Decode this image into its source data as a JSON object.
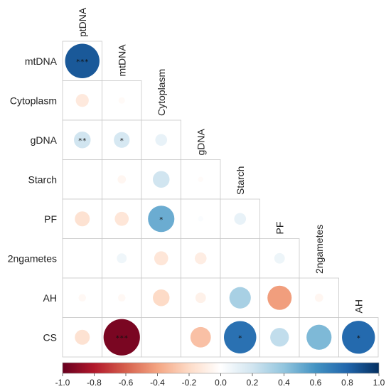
{
  "chart_data": {
    "type": "heatmap",
    "style": "lower-triangle correlogram, circle size and colour proportional to correlation",
    "top_labels": [
      "ptDNA",
      "mtDNA",
      "Cytoplasm",
      "gDNA",
      "Starch",
      "PF",
      "2ngametes",
      "AH"
    ],
    "row_labels": [
      "mtDNA",
      "Cytoplasm",
      "gDNA",
      "Starch",
      "PF",
      "2ngametes",
      "AH",
      "CS"
    ],
    "cells": [
      {
        "row": "mtDNA",
        "col": "ptDNA",
        "r": 0.85,
        "sig": "***"
      },
      {
        "row": "Cytoplasm",
        "col": "ptDNA",
        "r": -0.12,
        "sig": ""
      },
      {
        "row": "Cytoplasm",
        "col": "mtDNA",
        "r": -0.03,
        "sig": ""
      },
      {
        "row": "gDNA",
        "col": "ptDNA",
        "r": 0.2,
        "sig": "**"
      },
      {
        "row": "gDNA",
        "col": "mtDNA",
        "r": 0.18,
        "sig": "*"
      },
      {
        "row": "gDNA",
        "col": "Cytoplasm",
        "r": 0.1,
        "sig": ""
      },
      {
        "row": "Starch",
        "col": "ptDNA",
        "r": 0.0,
        "sig": ""
      },
      {
        "row": "Starch",
        "col": "mtDNA",
        "r": -0.05,
        "sig": ""
      },
      {
        "row": "Starch",
        "col": "Cytoplasm",
        "r": 0.2,
        "sig": ""
      },
      {
        "row": "Starch",
        "col": "gDNA",
        "r": -0.02,
        "sig": ""
      },
      {
        "row": "PF",
        "col": "ptDNA",
        "r": -0.16,
        "sig": ""
      },
      {
        "row": "PF",
        "col": "mtDNA",
        "r": -0.14,
        "sig": ""
      },
      {
        "row": "PF",
        "col": "Cytoplasm",
        "r": 0.5,
        "sig": "*"
      },
      {
        "row": "PF",
        "col": "gDNA",
        "r": 0.02,
        "sig": ""
      },
      {
        "row": "PF",
        "col": "Starch",
        "r": 0.1,
        "sig": ""
      },
      {
        "row": "2ngametes",
        "col": "ptDNA",
        "r": 0.0,
        "sig": ""
      },
      {
        "row": "2ngametes",
        "col": "mtDNA",
        "r": 0.07,
        "sig": ""
      },
      {
        "row": "2ngametes",
        "col": "Cytoplasm",
        "r": -0.14,
        "sig": ""
      },
      {
        "row": "2ngametes",
        "col": "gDNA",
        "r": -0.1,
        "sig": ""
      },
      {
        "row": "2ngametes",
        "col": "Starch",
        "r": 0.0,
        "sig": ""
      },
      {
        "row": "2ngametes",
        "col": "PF",
        "r": 0.08,
        "sig": ""
      },
      {
        "row": "AH",
        "col": "ptDNA",
        "r": -0.04,
        "sig": ""
      },
      {
        "row": "AH",
        "col": "mtDNA",
        "r": -0.04,
        "sig": ""
      },
      {
        "row": "AH",
        "col": "Cytoplasm",
        "r": -0.2,
        "sig": ""
      },
      {
        "row": "AH",
        "col": "gDNA",
        "r": -0.08,
        "sig": ""
      },
      {
        "row": "AH",
        "col": "Starch",
        "r": 0.33,
        "sig": ""
      },
      {
        "row": "AH",
        "col": "PF",
        "r": -0.42,
        "sig": ""
      },
      {
        "row": "AH",
        "col": "2ngametes",
        "r": -0.05,
        "sig": ""
      },
      {
        "row": "CS",
        "col": "ptDNA",
        "r": -0.16,
        "sig": ""
      },
      {
        "row": "CS",
        "col": "mtDNA",
        "r": -0.95,
        "sig": "***"
      },
      {
        "row": "CS",
        "col": "Cytoplasm",
        "r": 0.0,
        "sig": ""
      },
      {
        "row": "CS",
        "col": "gDNA",
        "r": -0.3,
        "sig": ""
      },
      {
        "row": "CS",
        "col": "Starch",
        "r": 0.75,
        "sig": "*"
      },
      {
        "row": "CS",
        "col": "PF",
        "r": 0.25,
        "sig": ""
      },
      {
        "row": "CS",
        "col": "2ngametes",
        "r": 0.45,
        "sig": ""
      },
      {
        "row": "CS",
        "col": "AH",
        "r": 0.78,
        "sig": "*"
      }
    ],
    "colorbar": {
      "range": [
        -1.0,
        1.0
      ],
      "ticks": [
        "-1.0",
        "-0.8",
        "-0.6",
        "-0.4",
        "-0.2",
        "0.0",
        "0.2",
        "0.4",
        "0.6",
        "0.8",
        "1.0"
      ],
      "colors": [
        "#67001f",
        "#b2182b",
        "#d6604d",
        "#f4a582",
        "#fddbc7",
        "#ffffff",
        "#d1e5f0",
        "#92c5de",
        "#4393c3",
        "#2166ac",
        "#053061"
      ]
    }
  }
}
